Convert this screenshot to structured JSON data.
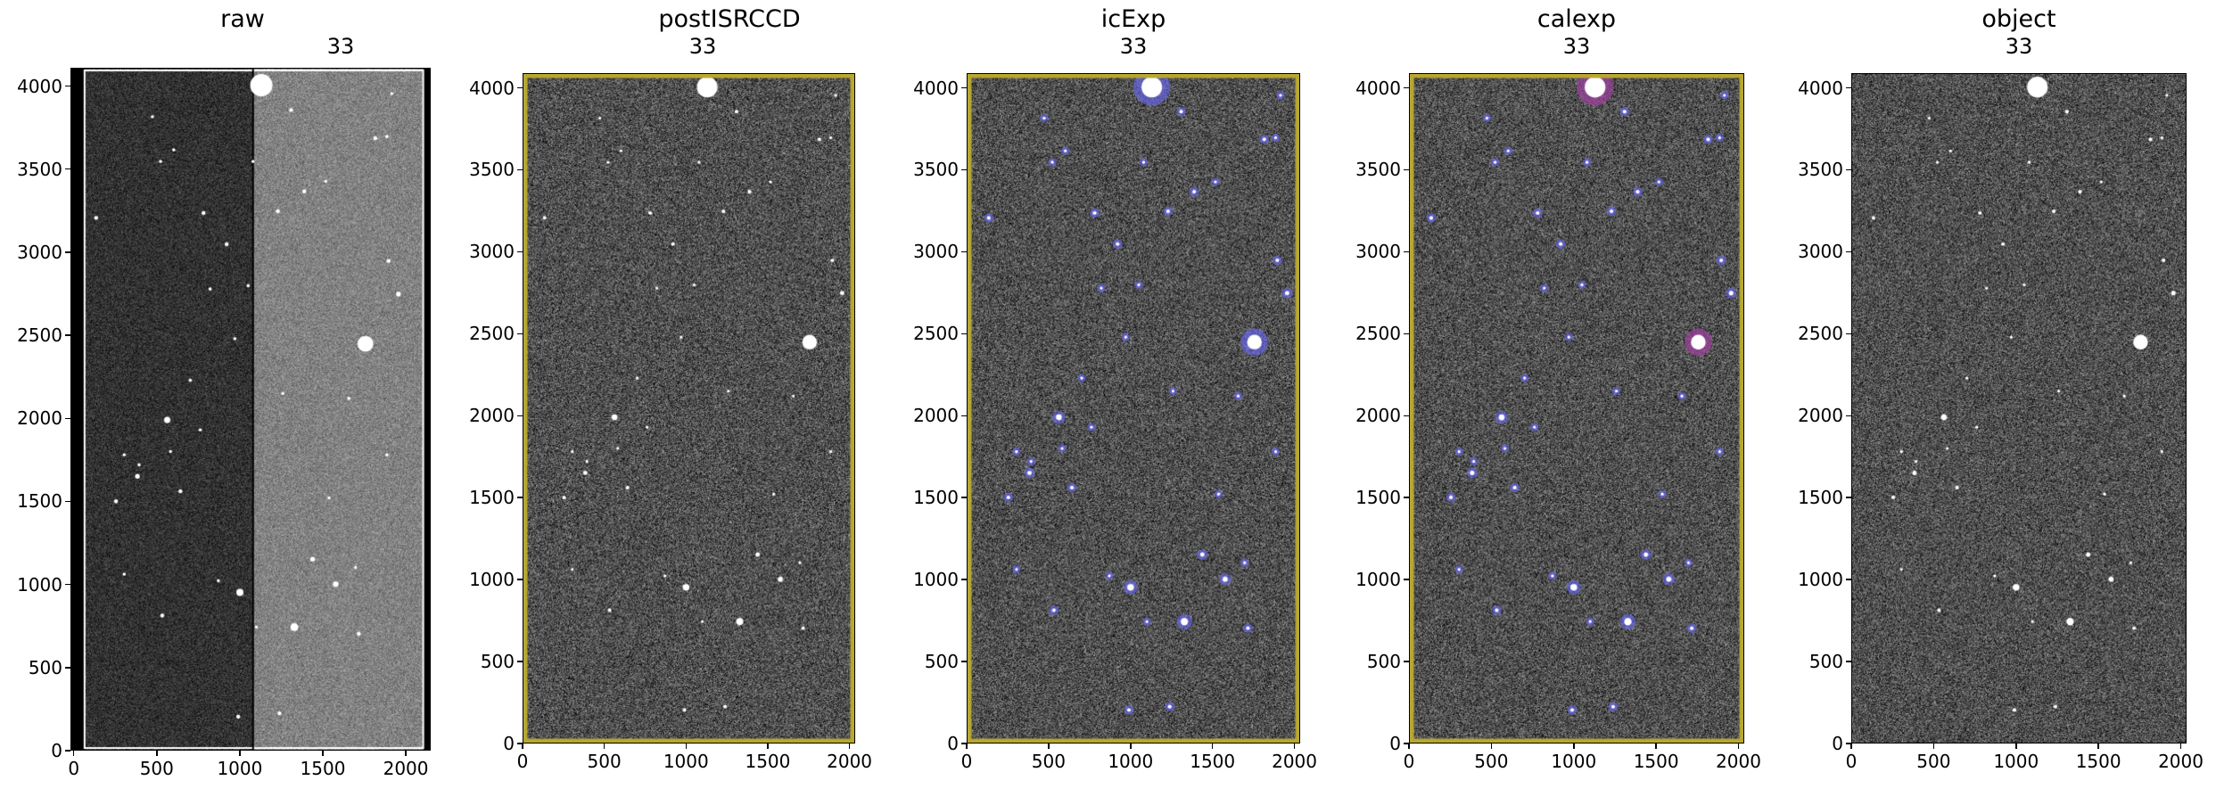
{
  "chart_data": {
    "type": "image",
    "panels": [
      {
        "title": "raw",
        "subtitle": "33",
        "xlim": [
          -20,
          2150
        ],
        "ylim": [
          0,
          4110
        ],
        "xticks": [
          "0",
          "500",
          "1000",
          "1500",
          "2000"
        ],
        "yticks": [
          "0",
          "500",
          "1000",
          "1500",
          "2000",
          "2500",
          "3000",
          "3500",
          "4000"
        ],
        "overlay": "none"
      },
      {
        "title": "postISRCCD",
        "subtitle": "33",
        "xlim": [
          0,
          2035
        ],
        "ylim": [
          0,
          4090
        ],
        "xticks": [
          "0",
          "500",
          "1000",
          "1500",
          "2000"
        ],
        "yticks": [
          "0",
          "500",
          "1000",
          "1500",
          "2000",
          "2500",
          "3000",
          "3500",
          "4000"
        ],
        "overlay": "border"
      },
      {
        "title": "icExp",
        "subtitle": "33",
        "xlim": [
          0,
          2035
        ],
        "ylim": [
          0,
          4090
        ],
        "xticks": [
          "0",
          "500",
          "1000",
          "1500",
          "2000"
        ],
        "yticks": [
          "0",
          "500",
          "1000",
          "1500",
          "2000",
          "2500",
          "3000",
          "3500",
          "4000"
        ],
        "overlay": "blue"
      },
      {
        "title": "calexp",
        "subtitle": "33",
        "xlim": [
          0,
          2035
        ],
        "ylim": [
          0,
          4090
        ],
        "xticks": [
          "0",
          "500",
          "1000",
          "1500",
          "2000"
        ],
        "yticks": [
          "0",
          "500",
          "1000",
          "1500",
          "2000",
          "2500",
          "3000",
          "3500",
          "4000"
        ],
        "overlay": "purple"
      },
      {
        "title": "object",
        "subtitle": "33",
        "xlim": [
          0,
          2035
        ],
        "ylim": [
          0,
          4090
        ],
        "xticks": [
          "0",
          "500",
          "1000",
          "1500",
          "2000"
        ],
        "yticks": [
          "0",
          "500",
          "1000",
          "1500",
          "2000",
          "2500",
          "3000",
          "3500",
          "4000"
        ],
        "overlay": "none"
      }
    ],
    "colors": {
      "mask_blue": "#6b6bff",
      "mask_purple": "#a040a0",
      "border_yellow": "#b8a830"
    }
  }
}
